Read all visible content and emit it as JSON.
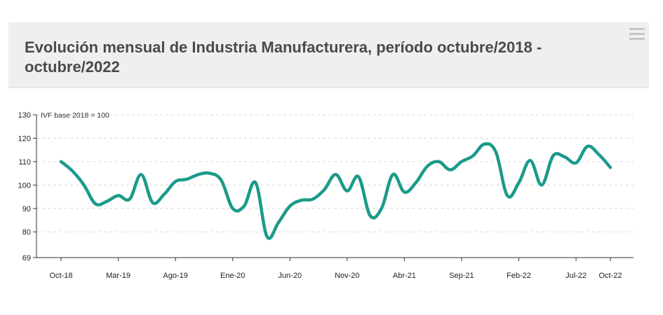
{
  "header": {
    "title": "Evolución mensual de Industria Manufacturera, período octubre/2018 - octubre/2022",
    "menu_icon": "hamburger-menu-icon"
  },
  "chart_data": {
    "type": "line",
    "title": "Evolución mensual de Industria Manufacturera, período octubre/2018 - octubre/2022",
    "annotation": "IVF base 2018 = 100",
    "xlabel": "",
    "ylabel": "",
    "ylim": [
      69,
      130
    ],
    "y_ticks": [
      "69",
      "80",
      "90",
      "100",
      "110",
      "120",
      "130"
    ],
    "x_tick_labels": [
      "Oct-18",
      "Mar-19",
      "Ago-19",
      "Ene-20",
      "Jun-20",
      "Nov-20",
      "Abr-21",
      "Sep-21",
      "Feb-22",
      "Jul-22",
      "Oct-22"
    ],
    "grid": true,
    "line_color": "#1b9a8a",
    "x": [
      "Oct-18",
      "Nov-18",
      "Dic-18",
      "Ene-19",
      "Feb-19",
      "Mar-19",
      "Abr-19",
      "May-19",
      "Jun-19",
      "Jul-19",
      "Ago-19",
      "Sep-19",
      "Oct-19",
      "Nov-19",
      "Dic-19",
      "Ene-20",
      "Feb-20",
      "Mar-20",
      "Abr-20",
      "May-20",
      "Jun-20",
      "Jul-20",
      "Ago-20",
      "Sep-20",
      "Oct-20",
      "Nov-20",
      "Dic-20",
      "Ene-21",
      "Feb-21",
      "Mar-21",
      "Abr-21",
      "May-21",
      "Jun-21",
      "Jul-21",
      "Ago-21",
      "Sep-21",
      "Oct-21",
      "Nov-21",
      "Dic-21",
      "Ene-22",
      "Feb-22",
      "Mar-22",
      "Abr-22",
      "May-22",
      "Jun-22",
      "Jul-22",
      "Ago-22",
      "Sep-22",
      "Oct-22"
    ],
    "values": [
      110,
      106,
      100,
      92,
      93,
      95.5,
      94,
      104.5,
      92.5,
      96,
      101.5,
      102.5,
      104.5,
      105,
      102,
      90,
      91,
      101,
      78,
      84,
      91,
      93.5,
      94,
      98,
      104.5,
      97.5,
      103.5,
      87,
      90,
      104.5,
      97,
      101,
      108,
      110,
      106.5,
      110,
      112.5,
      117.5,
      114,
      95.5,
      101,
      110.5,
      100,
      112.5,
      112,
      109.5,
      116.5,
      113,
      107.5
    ]
  }
}
